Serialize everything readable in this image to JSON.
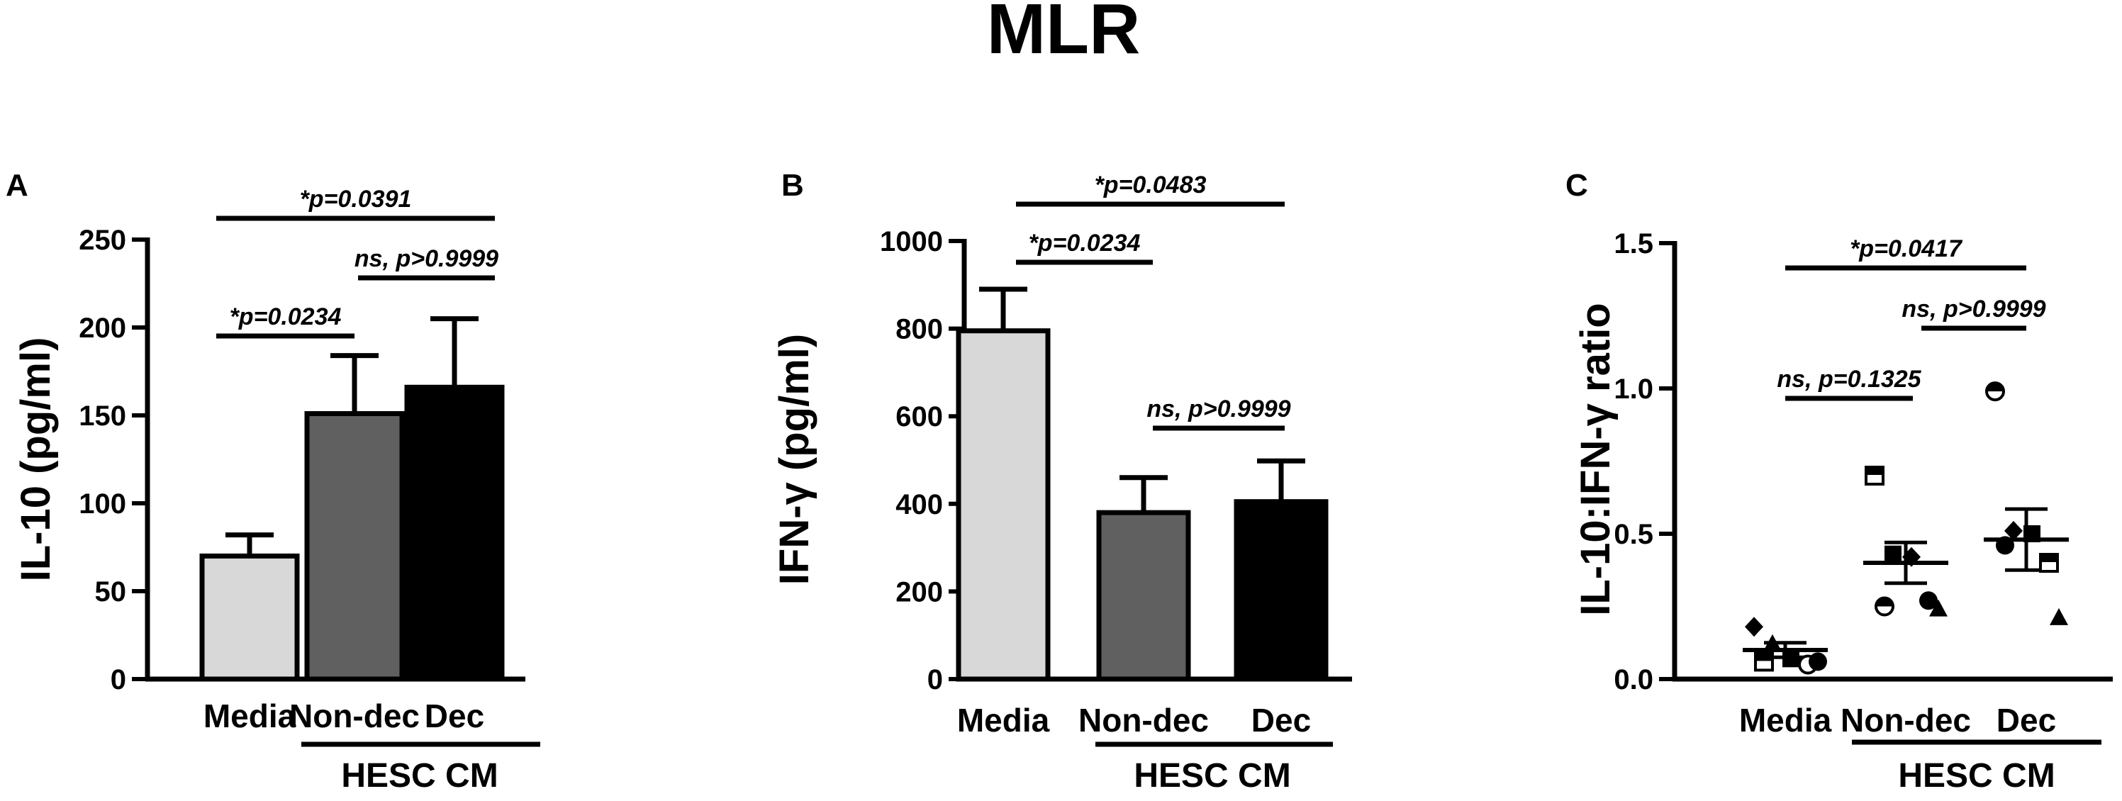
{
  "figure_title": "MLR",
  "group_label": "HESC CM",
  "chart_data": [
    {
      "panel": "A",
      "type": "bar",
      "categories": [
        "Media",
        "Non-dec",
        "Dec"
      ],
      "values": [
        70,
        151,
        166
      ],
      "errors": [
        12,
        33,
        39
      ],
      "bar_colors": [
        "#d8d8d8",
        "#606060",
        "#000000"
      ],
      "ylabel": "IL-10 (pg/ml)",
      "ylim": [
        0,
        250
      ],
      "yticks": [
        "0",
        "50",
        "100",
        "150",
        "200",
        "250"
      ],
      "comparisons": [
        {
          "from": 0,
          "to": 2,
          "label": "*p=0.0391"
        },
        {
          "from": 1,
          "to": 2,
          "label": "ns, p>0.9999"
        },
        {
          "from": 0,
          "to": 1,
          "label": "*p=0.0234"
        }
      ]
    },
    {
      "panel": "B",
      "type": "bar",
      "categories": [
        "Media",
        "Non-dec",
        "Dec"
      ],
      "values": [
        795,
        380,
        405
      ],
      "errors": [
        95,
        80,
        93
      ],
      "bar_colors": [
        "#d8d8d8",
        "#606060",
        "#000000"
      ],
      "ylabel": "IFN-γ (pg/ml)",
      "ylim": [
        0,
        1000
      ],
      "yticks": [
        "0",
        "200",
        "400",
        "600",
        "800",
        "1000"
      ],
      "comparisons": [
        {
          "from": 0,
          "to": 2,
          "label": "*p=0.0483"
        },
        {
          "from": 0,
          "to": 1,
          "label": "*p=0.0234"
        },
        {
          "from": 1,
          "to": 2,
          "label": "ns, p>0.9999"
        }
      ]
    },
    {
      "panel": "C",
      "type": "scatter",
      "categories": [
        "Media",
        "Non-dec",
        "Dec"
      ],
      "means": [
        0.1,
        0.4,
        0.48
      ],
      "sem": [
        0.025,
        0.07,
        0.105
      ],
      "points": [
        [
          {
            "y": 0.18,
            "marker": "diamond"
          },
          {
            "y": 0.12,
            "marker": "triangle"
          },
          {
            "y": 0.07,
            "marker": "square"
          },
          {
            "y": 0.05,
            "marker": "circle-open"
          },
          {
            "y": 0.06,
            "marker": "square-half"
          },
          {
            "y": 0.06,
            "marker": "circle"
          }
        ],
        [
          {
            "y": 0.7,
            "marker": "square-half"
          },
          {
            "y": 0.43,
            "marker": "square"
          },
          {
            "y": 0.42,
            "marker": "diamond"
          },
          {
            "y": 0.27,
            "marker": "circle"
          },
          {
            "y": 0.25,
            "marker": "circle-half"
          },
          {
            "y": 0.24,
            "marker": "triangle"
          }
        ],
        [
          {
            "y": 0.99,
            "marker": "circle-half"
          },
          {
            "y": 0.51,
            "marker": "diamond"
          },
          {
            "y": 0.5,
            "marker": "square"
          },
          {
            "y": 0.4,
            "marker": "square-half"
          },
          {
            "y": 0.46,
            "marker": "circle"
          },
          {
            "y": 0.21,
            "marker": "triangle"
          }
        ]
      ],
      "ylabel": "IL-10:IFN-γ ratio",
      "ylim": [
        0,
        1.5
      ],
      "yticks": [
        "0.0",
        "0.5",
        "1.0",
        "1.5"
      ],
      "comparisons": [
        {
          "from": 0,
          "to": 2,
          "label": "*p=0.0417"
        },
        {
          "from": 1,
          "to": 2,
          "label": "ns, p>0.9999"
        },
        {
          "from": 0,
          "to": 1,
          "label": "ns, p=0.1325"
        }
      ]
    }
  ]
}
